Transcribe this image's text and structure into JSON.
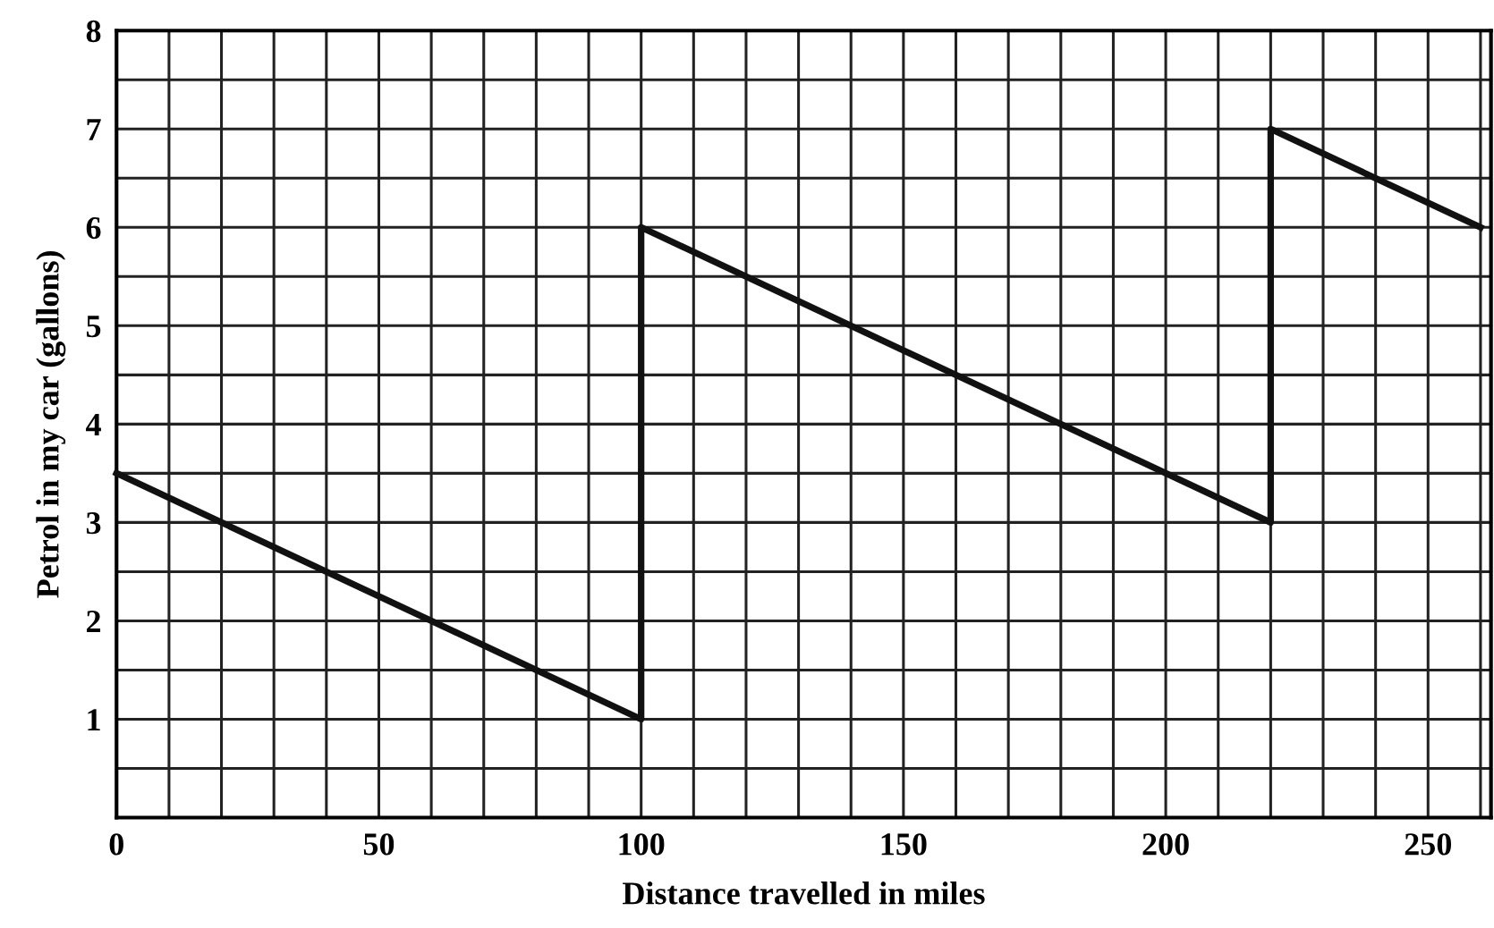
{
  "chart_data": {
    "type": "line",
    "xlabel": "Distance travelled in miles",
    "ylabel": "Petrol in my car (gallons)",
    "x": [
      0,
      100,
      100,
      220,
      220,
      260
    ],
    "series": [
      {
        "color": "#111111",
        "values": [
          3.5,
          1,
          6,
          3,
          7,
          6
        ]
      }
    ],
    "xlim": [
      0,
      262
    ],
    "ylim": [
      0,
      8
    ],
    "xticks": [
      0,
      {
        "value": 10,
        "label": null
      },
      {
        "value": 20,
        "label": null
      },
      {
        "value": 30,
        "label": null
      },
      {
        "value": 40,
        "label": null
      },
      50,
      {
        "value": 60,
        "label": null
      },
      {
        "value": 70,
        "label": null
      },
      {
        "value": 80,
        "label": null
      },
      {
        "value": 90,
        "label": null
      },
      100,
      {
        "value": 110,
        "label": null
      },
      {
        "value": 120,
        "label": null
      },
      {
        "value": 130,
        "label": null
      },
      {
        "value": 140,
        "label": null
      },
      150,
      {
        "value": 160,
        "label": null
      },
      {
        "value": 170,
        "label": null
      },
      {
        "value": 180,
        "label": null
      },
      {
        "value": 190,
        "label": null
      },
      200,
      {
        "value": 210,
        "label": null
      },
      {
        "value": 220,
        "label": null
      },
      {
        "value": 230,
        "label": null
      },
      {
        "value": 240,
        "label": null
      },
      250,
      {
        "value": 260,
        "label": null
      }
    ],
    "yticks": [
      {
        "value": 0,
        "label": null
      },
      {
        "value": 0.5,
        "label": null
      },
      1,
      {
        "value": 1.5,
        "label": null
      },
      2,
      {
        "value": 2.5,
        "label": null
      },
      3,
      {
        "value": 3.5,
        "label": null
      },
      4,
      {
        "value": 4.5,
        "label": null
      },
      5,
      {
        "value": 5.5,
        "label": null
      },
      6,
      {
        "value": 6.5,
        "label": null
      },
      7,
      {
        "value": 7.5,
        "label": null
      },
      8
    ],
    "grid": true,
    "marker": "none",
    "line_style": "solid"
  }
}
